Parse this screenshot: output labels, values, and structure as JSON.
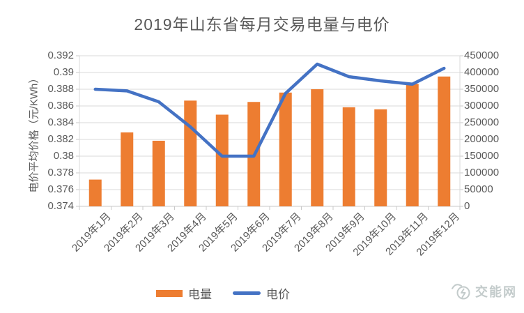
{
  "title": "2019年山东省每月交易电量与电价",
  "chart_data": {
    "type": "bar",
    "subtype": "combo-bar-line",
    "categories": [
      "2019年1月",
      "2019年2月",
      "2019年3月",
      "2019年4月",
      "2019年5月",
      "2019年6月",
      "2019年7月",
      "2019年8月",
      "2019年9月",
      "2019年10月",
      "2019年11月",
      "2019年12月"
    ],
    "series": [
      {
        "name": "电量",
        "type": "bar",
        "axis": "right",
        "color": "#ED7D31",
        "values": [
          80000,
          221000,
          196000,
          316000,
          274000,
          312000,
          340000,
          350000,
          296000,
          290000,
          366000,
          388000
        ]
      },
      {
        "name": "电价",
        "type": "line",
        "axis": "left",
        "color": "#4472C4",
        "values": [
          0.388,
          0.3878,
          0.3865,
          0.3835,
          0.38,
          0.38,
          0.3875,
          0.391,
          0.3895,
          0.389,
          0.3886,
          0.3905
        ]
      }
    ],
    "left_axis": {
      "label": "电价平均价格（元/KWh）",
      "min": 0.374,
      "max": 0.392,
      "step": 0.002,
      "tick_labels_top_to_bottom": [
        "0.392",
        "0.39",
        "0.388",
        "0.386",
        "0.384",
        "0.382",
        "0.38",
        "0.378",
        "0.376",
        "0.374"
      ]
    },
    "right_axis": {
      "label": "",
      "min": 0,
      "max": 450000,
      "step": 50000,
      "tick_labels_top_to_bottom": [
        "450000",
        "400000",
        "350000",
        "300000",
        "250000",
        "200000",
        "150000",
        "100000",
        "50000",
        "0"
      ]
    },
    "grid": true,
    "legend_position": "bottom"
  },
  "legend": {
    "volume_label": "电量",
    "price_label": "电价"
  },
  "watermark": {
    "text": "交能网"
  },
  "colors": {
    "bar": "#ED7D31",
    "line": "#4472C4",
    "text": "#595959",
    "grid": "#D9D9D9",
    "axis": "#C9C9C9",
    "watermark": "#C3CBCB",
    "background": "#FFFFFF"
  }
}
